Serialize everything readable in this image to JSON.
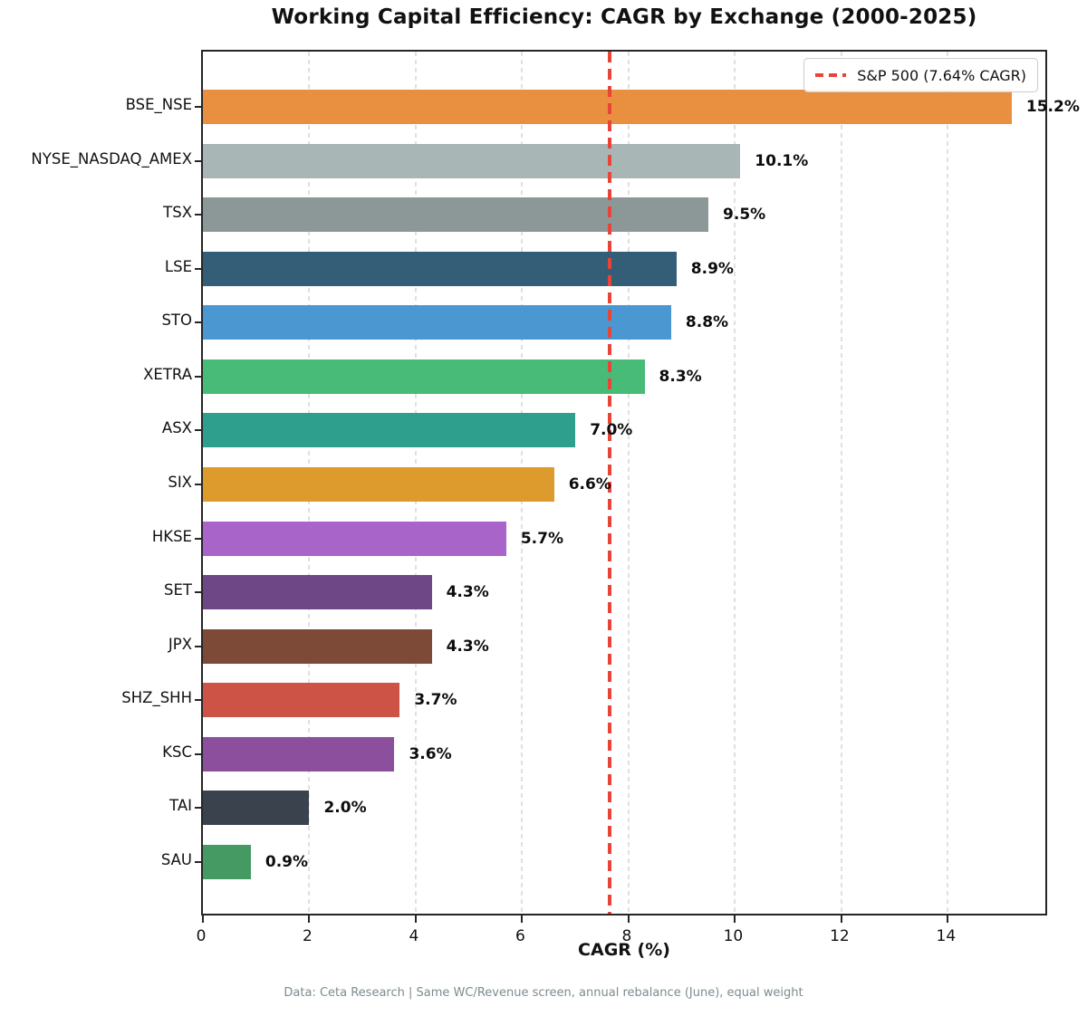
{
  "chart_data": {
    "type": "bar",
    "orientation": "horizontal",
    "title": "Working Capital Efficiency: CAGR by Exchange (2000-2025)",
    "xlabel": "CAGR (%)",
    "footer": "Data: Ceta Research | Same WC/Revenue screen, annual rebalance (June), equal weight",
    "categories": [
      "BSE_NSE",
      "NYSE_NASDAQ_AMEX",
      "TSX",
      "LSE",
      "STO",
      "XETRA",
      "ASX",
      "SIX",
      "HKSE",
      "SET",
      "JPX",
      "SHZ_SHH",
      "KSC",
      "TAI",
      "SAU"
    ],
    "values": [
      15.2,
      10.1,
      9.5,
      8.9,
      8.8,
      8.3,
      7.0,
      6.6,
      5.7,
      4.3,
      4.3,
      3.7,
      3.6,
      2.0,
      0.9
    ],
    "value_labels": [
      "15.2%",
      "10.1%",
      "9.5%",
      "8.9%",
      "8.8%",
      "8.3%",
      "7.0%",
      "6.6%",
      "5.7%",
      "4.3%",
      "4.3%",
      "3.7%",
      "3.6%",
      "2.0%",
      "0.9%"
    ],
    "bar_colors": [
      "#e88f40",
      "#a9b6b6",
      "#8b9897",
      "#345d77",
      "#4b97d2",
      "#48bb78",
      "#2f9f8d",
      "#dd9b2e",
      "#a964c9",
      "#6e4787",
      "#7c4a37",
      "#cd5347",
      "#8b4f9e",
      "#3a434d",
      "#459a63"
    ],
    "xlim": [
      0,
      15.9
    ],
    "xticks": [
      0,
      2,
      4,
      6,
      8,
      10,
      12,
      14
    ],
    "grid": {
      "axis": "x",
      "style": "dashed",
      "color": "#e0e0e0"
    },
    "reference_line": {
      "value": 7.64,
      "color": "#e84438",
      "style": "dashed"
    },
    "legend": {
      "position": "upper-right",
      "entries": [
        {
          "label": "S&P 500 (7.64% CAGR)",
          "color": "#e84438",
          "style": "dashed"
        }
      ]
    }
  },
  "colors": {
    "spine": "#262626",
    "text": "#111111",
    "footer_text": "#7d8b90",
    "background": "#ffffff"
  }
}
